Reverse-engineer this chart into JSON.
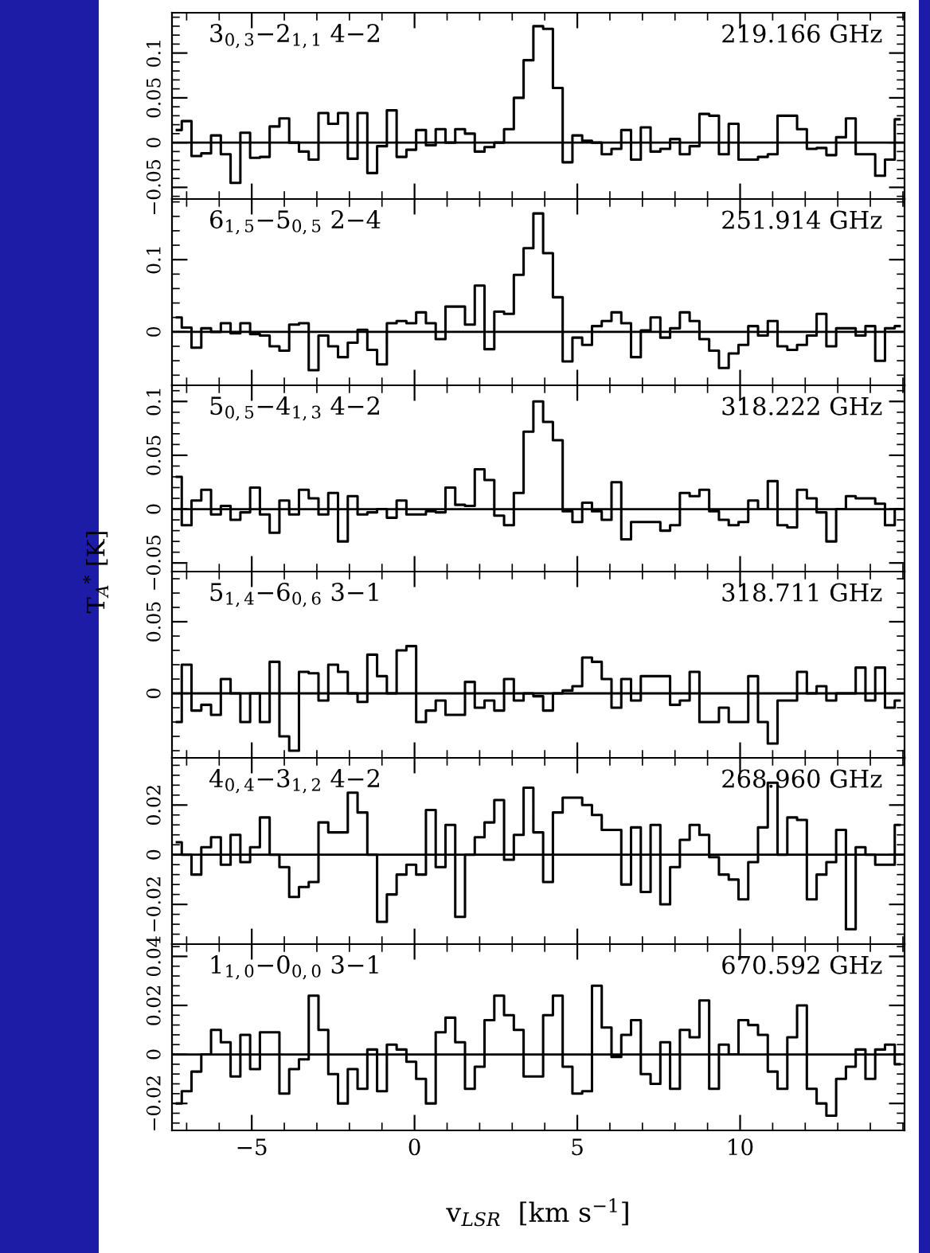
{
  "chart_data": [
    {
      "type": "step",
      "annotations": [
        "3$_{0,3}$−2$_{1,1}$ 4−2",
        "219.166 GHz"
      ],
      "color": "#000000",
      "xlim": [
        -7.45,
        15.05
      ],
      "ylim": [
        -0.063,
        0.145
      ],
      "yticks": [
        -0.05,
        0,
        0.05,
        0.1
      ],
      "tick_labels": "y",
      "ref_lines": [
        {
          "axis": "y",
          "value": 0
        }
      ],
      "x": [
        -7.3,
        -7.0,
        -6.7,
        -6.4,
        -6.1,
        -5.8,
        -5.5,
        -5.2,
        -4.9,
        -4.6,
        -4.3,
        -4.0,
        -3.7,
        -3.4,
        -3.1,
        -2.8,
        -2.5,
        -2.2,
        -1.9,
        -1.6,
        -1.3,
        -1.0,
        -0.7,
        -0.4,
        -0.1,
        0.2,
        0.5,
        0.8,
        1.1,
        1.4,
        1.7,
        2.0,
        2.3,
        2.6,
        2.9,
        3.2,
        3.5,
        3.8,
        4.1,
        4.4,
        4.7,
        5.0,
        5.3,
        5.6,
        5.9,
        6.2,
        6.5,
        6.8,
        7.1,
        7.4,
        7.7,
        8.0,
        8.3,
        8.6,
        8.9,
        9.2,
        9.5,
        9.8,
        10.1,
        10.4,
        10.7,
        11.0,
        11.3,
        11.6,
        11.9,
        12.2,
        12.5,
        12.8,
        13.1,
        13.4,
        13.7,
        14.0,
        14.3,
        14.6,
        14.9
      ],
      "values": [
        0.014,
        0.024,
        -0.015,
        -0.012,
        0.008,
        -0.013,
        -0.045,
        0.011,
        -0.017,
        -0.016,
        0.018,
        0.027,
        0.0,
        -0.01,
        -0.019,
        0.033,
        0.021,
        0.033,
        -0.018,
        0.033,
        -0.034,
        -0.004,
        0.036,
        -0.016,
        -0.008,
        0.014,
        -0.003,
        0.015,
        0.0,
        0.015,
        0.01,
        -0.01,
        -0.005,
        0.0,
        0.015,
        0.05,
        0.092,
        0.13,
        0.127,
        0.061,
        -0.022,
        0.008,
        0.002,
        0.0,
        -0.013,
        -0.007,
        0.014,
        -0.019,
        0.017,
        -0.01,
        -0.007,
        0.004,
        -0.013,
        -0.004,
        0.032,
        0.03,
        -0.013,
        0.021,
        -0.019,
        -0.019,
        -0.016,
        -0.013,
        0.03,
        0.03,
        0.015,
        -0.007,
        -0.006,
        -0.014,
        0.006,
        0.027,
        -0.013,
        -0.013,
        -0.037,
        -0.019,
        0.026
      ]
    },
    {
      "type": "step",
      "annotations": [
        "6$_{1,5}$−5$_{0,5}$ 2−4",
        "251.914 GHz"
      ],
      "color": "#000000",
      "xlim": [
        -7.45,
        15.05
      ],
      "ylim": [
        -0.074,
        0.184
      ],
      "yticks": [
        0,
        0.1
      ],
      "tick_labels": "y",
      "ref_lines": [
        {
          "axis": "y",
          "value": 0
        }
      ],
      "x": [
        -7.3,
        -7.0,
        -6.7,
        -6.4,
        -6.1,
        -5.8,
        -5.5,
        -5.2,
        -4.9,
        -4.6,
        -4.3,
        -4.0,
        -3.7,
        -3.4,
        -3.1,
        -2.8,
        -2.5,
        -2.2,
        -1.9,
        -1.6,
        -1.3,
        -1.0,
        -0.7,
        -0.4,
        -0.1,
        0.2,
        0.5,
        0.8,
        1.1,
        1.4,
        1.7,
        2.0,
        2.3,
        2.6,
        2.9,
        3.2,
        3.5,
        3.8,
        4.1,
        4.4,
        4.7,
        5.0,
        5.3,
        5.6,
        5.9,
        6.2,
        6.5,
        6.8,
        7.1,
        7.4,
        7.7,
        8.0,
        8.3,
        8.6,
        8.9,
        9.2,
        9.5,
        9.8,
        10.1,
        10.4,
        10.7,
        11.0,
        11.3,
        11.6,
        11.9,
        12.2,
        12.5,
        12.8,
        13.1,
        13.4,
        13.7,
        14.0,
        14.3,
        14.6,
        14.9
      ],
      "values": [
        0.02,
        0.006,
        -0.022,
        0.005,
        0.0,
        0.012,
        -0.002,
        0.012,
        -0.003,
        -0.005,
        -0.02,
        -0.026,
        0.01,
        0.012,
        -0.053,
        -0.005,
        -0.02,
        -0.035,
        -0.015,
        0.003,
        -0.025,
        -0.045,
        0.012,
        0.015,
        0.012,
        0.027,
        0.012,
        -0.01,
        0.035,
        0.035,
        0.01,
        0.064,
        -0.024,
        0.028,
        0.025,
        0.079,
        0.116,
        0.164,
        0.109,
        0.048,
        -0.041,
        -0.008,
        -0.018,
        0.008,
        0.015,
        0.027,
        0.012,
        -0.035,
        0.002,
        0.02,
        -0.008,
        0.005,
        0.027,
        0.015,
        -0.01,
        -0.026,
        -0.05,
        -0.03,
        -0.018,
        0.008,
        -0.005,
        0.015,
        -0.02,
        -0.025,
        -0.018,
        -0.005,
        0.025,
        -0.02,
        0.005,
        0.005,
        -0.005,
        0.008,
        -0.04,
        0.005,
        0.008
      ]
    },
    {
      "type": "step",
      "annotations": [
        "5$_{0,5}$−4$_{1,3}$ 4−2",
        "318.222 GHz"
      ],
      "color": "#000000",
      "xlim": [
        -7.45,
        15.05
      ],
      "ylim": [
        -0.058,
        0.115
      ],
      "yticks": [
        -0.05,
        0,
        0.05,
        0.1
      ],
      "tick_labels": "y",
      "ylabel": "T$_{A}$$^{*}$ [K]",
      "ref_lines": [
        {
          "axis": "y",
          "value": 0
        }
      ],
      "x": [
        -7.3,
        -7.0,
        -6.7,
        -6.4,
        -6.1,
        -5.8,
        -5.5,
        -5.2,
        -4.9,
        -4.6,
        -4.3,
        -4.0,
        -3.7,
        -3.4,
        -3.1,
        -2.8,
        -2.5,
        -2.2,
        -1.9,
        -1.6,
        -1.3,
        -1.0,
        -0.7,
        -0.4,
        -0.1,
        0.2,
        0.5,
        0.8,
        1.1,
        1.4,
        1.7,
        2.0,
        2.3,
        2.6,
        2.9,
        3.2,
        3.5,
        3.8,
        4.1,
        4.4,
        4.7,
        5.0,
        5.3,
        5.6,
        5.9,
        6.2,
        6.5,
        6.8,
        7.1,
        7.4,
        7.7,
        8.0,
        8.3,
        8.6,
        8.9,
        9.2,
        9.5,
        9.8,
        10.1,
        10.4,
        10.7,
        11.0,
        11.3,
        11.6,
        11.9,
        12.2,
        12.5,
        12.8,
        13.1,
        13.4,
        13.7,
        14.0,
        14.3,
        14.6,
        14.9
      ],
      "values": [
        0.03,
        -0.015,
        0.008,
        0.018,
        -0.005,
        0.003,
        -0.01,
        -0.003,
        0.02,
        -0.005,
        -0.022,
        0.008,
        -0.005,
        0.018,
        0.01,
        -0.005,
        0.015,
        -0.03,
        0.012,
        -0.005,
        -0.003,
        0.0,
        -0.008,
        0.008,
        -0.005,
        -0.005,
        -0.002,
        -0.003,
        0.02,
        0.004,
        0.003,
        0.037,
        0.027,
        -0.006,
        -0.015,
        0.015,
        0.072,
        0.1,
        0.081,
        0.064,
        -0.002,
        -0.012,
        0.006,
        -0.002,
        -0.01,
        0.025,
        -0.028,
        -0.012,
        -0.012,
        -0.012,
        -0.02,
        -0.015,
        0.015,
        0.012,
        0.018,
        -0.002,
        -0.01,
        -0.015,
        -0.012,
        0.008,
        0.0,
        0.026,
        -0.015,
        -0.017,
        0.018,
        0.01,
        -0.003,
        -0.03,
        0.0,
        0.012,
        0.01,
        0.01,
        0.005,
        -0.015,
        0.0
      ]
    },
    {
      "type": "step",
      "annotations": [
        "5$_{1,4}$−6$_{0,6}$ 3−1",
        "318.711 GHz"
      ],
      "color": "#000000",
      "xlim": [
        -7.45,
        15.05
      ],
      "ylim": [
        -0.045,
        0.085
      ],
      "yticks": [
        0,
        0.05
      ],
      "tick_labels": "y",
      "ref_lines": [
        {
          "axis": "y",
          "value": 0
        }
      ],
      "x": [
        -7.3,
        -7.0,
        -6.7,
        -6.4,
        -6.1,
        -5.8,
        -5.5,
        -5.2,
        -4.9,
        -4.6,
        -4.3,
        -4.0,
        -3.7,
        -3.4,
        -3.1,
        -2.8,
        -2.5,
        -2.2,
        -1.9,
        -1.6,
        -1.3,
        -1.0,
        -0.7,
        -0.4,
        -0.1,
        0.2,
        0.5,
        0.8,
        1.1,
        1.4,
        1.7,
        2.0,
        2.3,
        2.6,
        2.9,
        3.2,
        3.5,
        3.8,
        4.1,
        4.4,
        4.7,
        5.0,
        5.3,
        5.6,
        5.9,
        6.2,
        6.5,
        6.8,
        7.1,
        7.4,
        7.7,
        8.0,
        8.3,
        8.6,
        8.9,
        9.2,
        9.5,
        9.8,
        10.1,
        10.4,
        10.7,
        11.0,
        11.3,
        11.6,
        11.9,
        12.2,
        12.5,
        12.8,
        13.1,
        13.4,
        13.7,
        14.0,
        14.3,
        14.6,
        14.9
      ],
      "values": [
        -0.02,
        0.02,
        -0.012,
        -0.008,
        -0.015,
        0.01,
        0.0,
        -0.02,
        0.0,
        -0.02,
        0.022,
        -0.03,
        -0.04,
        0.015,
        0.014,
        -0.005,
        0.02,
        0.015,
        0.0,
        -0.006,
        0.027,
        0.012,
        0.0,
        0.03,
        0.033,
        -0.02,
        -0.012,
        -0.005,
        -0.015,
        -0.015,
        0.008,
        -0.01,
        -0.005,
        -0.012,
        0.01,
        -0.005,
        0.0,
        -0.002,
        -0.012,
        0.0,
        0.002,
        0.005,
        0.025,
        0.022,
        0.01,
        -0.01,
        0.01,
        -0.005,
        0.012,
        0.012,
        0.012,
        -0.008,
        -0.005,
        0.015,
        -0.02,
        -0.02,
        -0.01,
        -0.02,
        -0.02,
        0.012,
        -0.02,
        -0.035,
        -0.005,
        -0.005,
        0.015,
        0.0,
        0.005,
        -0.005,
        0.0,
        0.0,
        0.018,
        -0.005,
        0.018,
        -0.01,
        -0.005
      ]
    },
    {
      "type": "step",
      "annotations": [
        "4$_{0,4}$−3$_{1,2}$ 4−2",
        "268.960 GHz"
      ],
      "color": "#000000",
      "xlim": [
        -7.45,
        15.05
      ],
      "ylim": [
        -0.036,
        0.039
      ],
      "yticks": [
        -0.02,
        0,
        0.02
      ],
      "tick_labels": "y",
      "ref_lines": [
        {
          "axis": "y",
          "value": 0
        }
      ],
      "x": [
        -7.3,
        -7.0,
        -6.7,
        -6.4,
        -6.1,
        -5.8,
        -5.5,
        -5.2,
        -4.9,
        -4.6,
        -4.3,
        -4.0,
        -3.7,
        -3.4,
        -3.1,
        -2.8,
        -2.5,
        -2.2,
        -1.9,
        -1.6,
        -1.3,
        -1.0,
        -0.7,
        -0.4,
        -0.1,
        0.2,
        0.5,
        0.8,
        1.1,
        1.4,
        1.7,
        2.0,
        2.3,
        2.6,
        2.9,
        3.2,
        3.5,
        3.8,
        4.1,
        4.4,
        4.7,
        5.0,
        5.3,
        5.6,
        5.9,
        6.2,
        6.5,
        6.8,
        7.1,
        7.4,
        7.7,
        8.0,
        8.3,
        8.6,
        8.9,
        9.2,
        9.5,
        9.8,
        10.1,
        10.4,
        10.7,
        11.0,
        11.3,
        11.6,
        11.9,
        12.2,
        12.5,
        12.8,
        13.1,
        13.4,
        13.7,
        14.0,
        14.3,
        14.6,
        14.9
      ],
      "values": [
        0.005,
        0.0,
        -0.008,
        0.003,
        0.007,
        -0.004,
        0.008,
        -0.003,
        0.003,
        0.015,
        0.0,
        -0.005,
        -0.017,
        -0.013,
        -0.011,
        0.013,
        0.009,
        0.009,
        0.025,
        0.017,
        0.0,
        -0.027,
        -0.016,
        -0.008,
        -0.004,
        -0.008,
        0.018,
        -0.005,
        0.012,
        -0.025,
        0.0,
        0.007,
        0.013,
        0.022,
        -0.002,
        0.008,
        0.027,
        0.009,
        -0.011,
        0.017,
        0.023,
        0.023,
        0.02,
        0.016,
        0.01,
        0.01,
        -0.012,
        0.011,
        -0.015,
        0.012,
        -0.02,
        -0.005,
        0.006,
        0.012,
        0.008,
        -0.001,
        -0.008,
        -0.01,
        -0.018,
        -0.003,
        0.011,
        0.029,
        0.0,
        0.015,
        0.014,
        -0.018,
        -0.008,
        -0.003,
        0.01,
        -0.03,
        0.003,
        0.0,
        -0.004,
        -0.004,
        0.012
      ]
    },
    {
      "type": "step",
      "annotations": [
        "1$_{1,0}$−0$_{0,0}$ 3−1",
        "670.592 GHz"
      ],
      "color": "#000000",
      "xlim": [
        -7.45,
        15.05
      ],
      "xticks": [
        -5,
        0,
        5,
        10
      ],
      "ylim": [
        -0.031,
        0.045
      ],
      "yticks": [
        -0.02,
        0,
        0.02,
        0.04
      ],
      "xlabel": "v$_{LSR}$  [km s$^{−1}$]",
      "ref_lines": [
        {
          "axis": "y",
          "value": 0
        }
      ],
      "x": [
        -7.3,
        -7.0,
        -6.7,
        -6.4,
        -6.1,
        -5.8,
        -5.5,
        -5.2,
        -4.9,
        -4.6,
        -4.3,
        -4.0,
        -3.7,
        -3.4,
        -3.1,
        -2.8,
        -2.5,
        -2.2,
        -1.9,
        -1.6,
        -1.3,
        -1.0,
        -0.7,
        -0.4,
        -0.1,
        0.2,
        0.5,
        0.8,
        1.1,
        1.4,
        1.7,
        2.0,
        2.3,
        2.6,
        2.9,
        3.2,
        3.5,
        3.8,
        4.1,
        4.4,
        4.7,
        5.0,
        5.3,
        5.6,
        5.9,
        6.2,
        6.5,
        6.8,
        7.1,
        7.4,
        7.7,
        8.0,
        8.3,
        8.6,
        8.9,
        9.2,
        9.5,
        9.8,
        10.1,
        10.4,
        10.7,
        11.0,
        11.3,
        11.6,
        11.9,
        12.2,
        12.5,
        12.8,
        13.1,
        13.4,
        13.7,
        14.0,
        14.3,
        14.6,
        14.9
      ],
      "values": [
        -0.02,
        -0.015,
        -0.007,
        0.0,
        0.01,
        0.005,
        -0.009,
        0.008,
        -0.006,
        0.009,
        0.009,
        -0.016,
        -0.006,
        -0.002,
        0.024,
        0.01,
        -0.008,
        -0.02,
        -0.006,
        -0.014,
        0.002,
        -0.015,
        0.004,
        0.002,
        -0.003,
        -0.01,
        -0.02,
        0.009,
        0.015,
        0.005,
        -0.014,
        -0.005,
        0.014,
        0.024,
        0.016,
        0.01,
        -0.009,
        -0.009,
        0.016,
        0.024,
        -0.005,
        -0.016,
        -0.015,
        0.028,
        0.011,
        -0.001,
        0.008,
        0.014,
        -0.008,
        -0.012,
        0.005,
        -0.014,
        0.01,
        0.007,
        0.022,
        -0.014,
        0.004,
        0.0,
        0.014,
        0.012,
        0.008,
        -0.007,
        -0.014,
        0.007,
        0.02,
        -0.014,
        -0.02,
        -0.025,
        -0.01,
        -0.005,
        0.002,
        -0.01,
        0.002,
        0.004,
        -0.004
      ]
    }
  ]
}
